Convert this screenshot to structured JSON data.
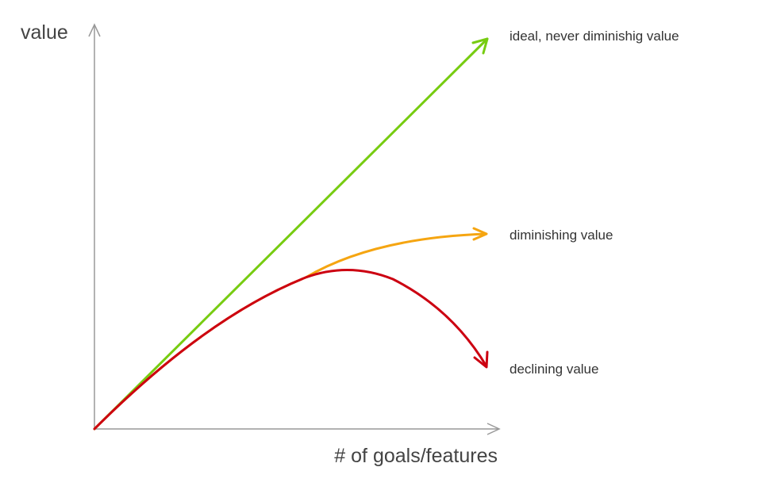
{
  "axes": {
    "y_label": "value",
    "x_label": "# of goals/features"
  },
  "curves": [
    {
      "label": "ideal, never diminishig value"
    },
    {
      "label": "diminishing value"
    },
    {
      "label": "declining value"
    }
  ]
}
